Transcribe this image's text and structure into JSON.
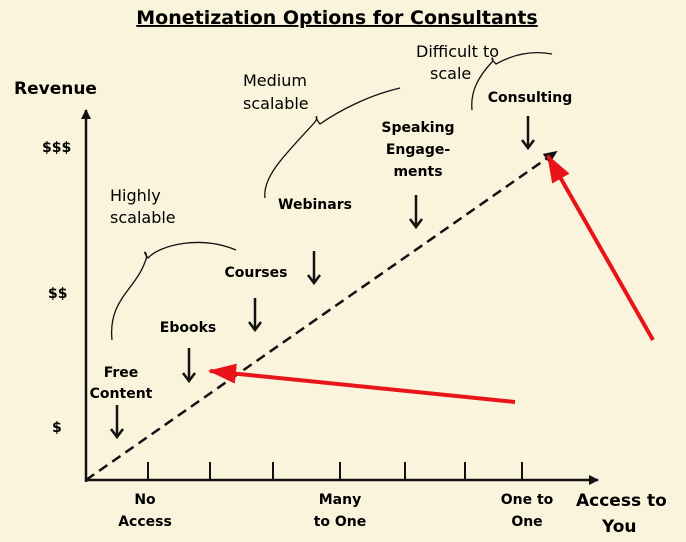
{
  "title": "Monetization Options for Consultants",
  "y_axis_title": "Revenue",
  "x_axis_title": [
    "Access to",
    "You"
  ],
  "y_ticks": [
    "$$$",
    "$$",
    "$"
  ],
  "x_ticks": [
    [
      "No",
      "Access"
    ],
    [
      "Many",
      "to One"
    ],
    [
      "One to",
      "One"
    ]
  ],
  "items": {
    "free_content": [
      "Free",
      "Content"
    ],
    "ebooks": [
      "Ebooks"
    ],
    "courses": [
      "Courses"
    ],
    "webinars": [
      "Webinars"
    ],
    "speaking": [
      "Speaking",
      "Engage-",
      "ments"
    ],
    "consulting": [
      "Consulting"
    ]
  },
  "notes": {
    "highly_scalable": [
      "Highly",
      "scalable"
    ],
    "medium_scalable": [
      "Medium",
      "scalable"
    ],
    "difficult": [
      "Difficult to",
      "scale"
    ]
  },
  "colors": {
    "background": "#faf4dc",
    "ink": "#111111",
    "highlight_arrow": "#e8141a"
  }
}
